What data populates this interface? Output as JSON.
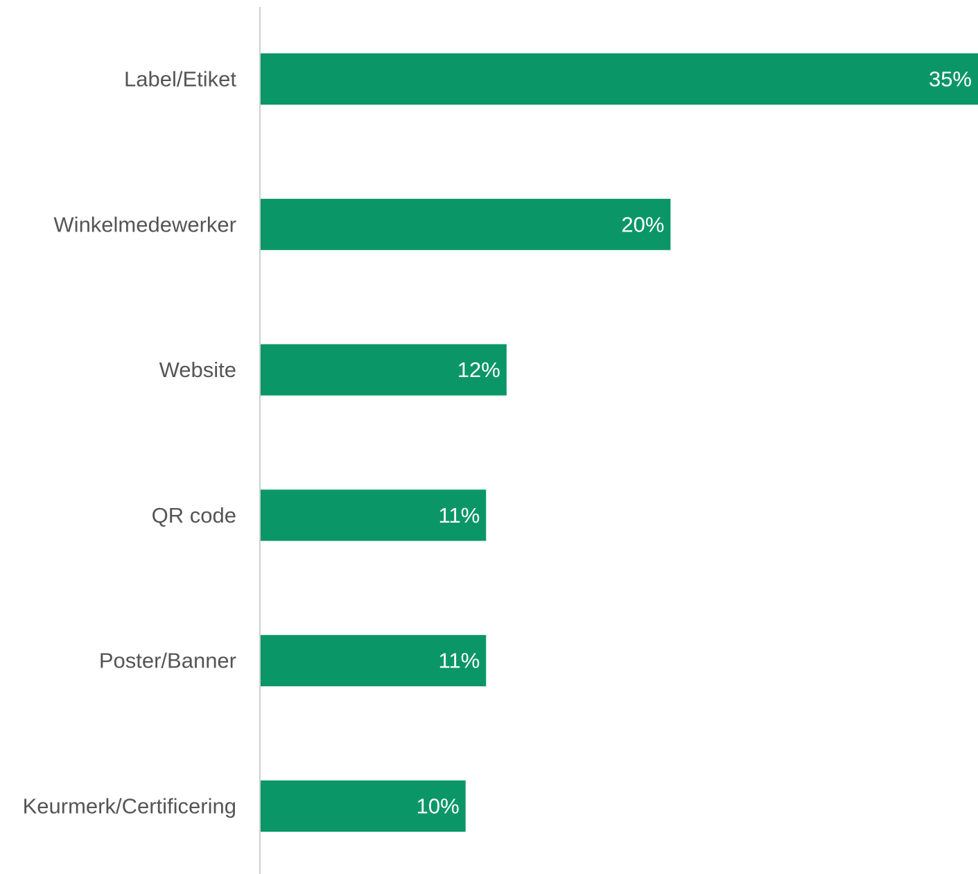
{
  "chart_data": {
    "type": "bar",
    "orientation": "horizontal",
    "categories": [
      "Label/Etiket",
      "Winkelmedewerker",
      "Website",
      "QR code",
      "Poster/Banner",
      "Keurmerk/Certificering"
    ],
    "values": [
      35,
      20,
      12,
      11,
      11,
      10
    ],
    "value_labels": [
      "35%",
      "20%",
      "12%",
      "11%",
      "11%",
      "10%"
    ],
    "unit": "%",
    "xlim": [
      0,
      35
    ],
    "grid": false,
    "legend": "none",
    "bar_color": "#0b9668",
    "axis_color": "#d0d0d0",
    "label_color": "#555555",
    "value_label_color": "#ffffff"
  }
}
